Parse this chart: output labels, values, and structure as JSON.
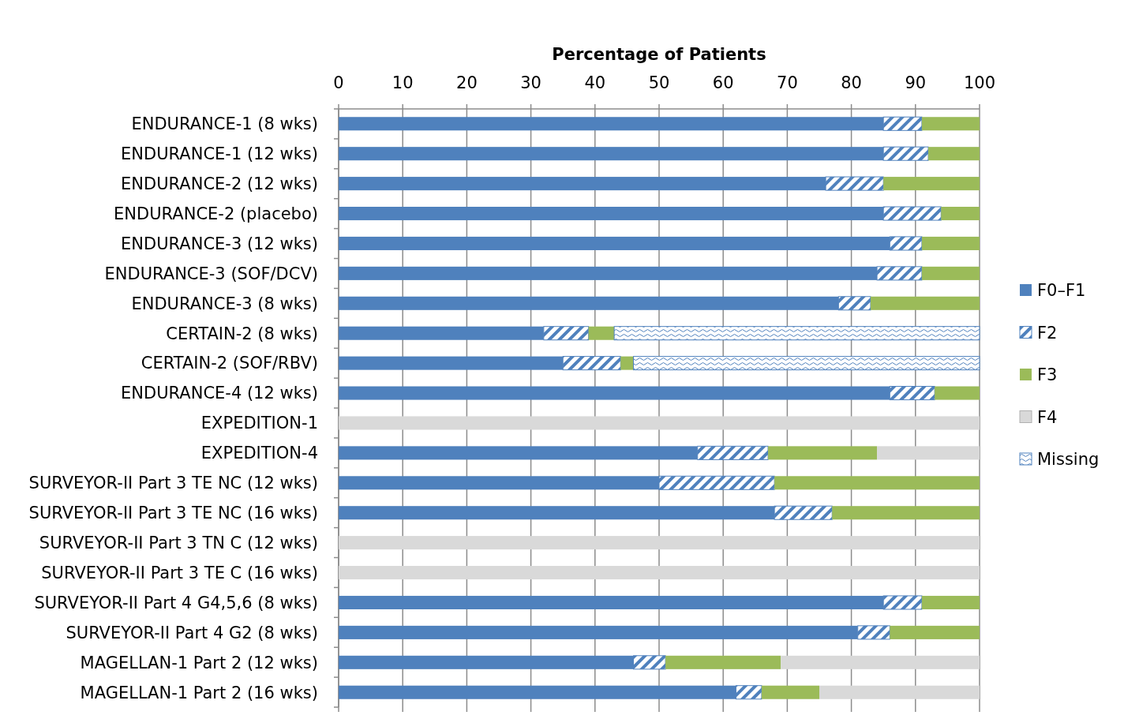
{
  "chart_data": {
    "type": "bar",
    "orientation": "horizontal",
    "stacked": true,
    "xlabel": "Percentage of Patients",
    "categories": [
      "ENDURANCE-1 (8 wks)",
      "ENDURANCE-1 (12 wks)",
      "ENDURANCE-2 (12 wks)",
      "ENDURANCE-2 (placebo)",
      "ENDURANCE-3 (12 wks)",
      "ENDURANCE-3 (SOF/DCV)",
      "ENDURANCE-3 (8 wks)",
      "CERTAIN-2 (8 wks)",
      "CERTAIN-2 (SOF/RBV)",
      "ENDURANCE-4 (12 wks)",
      "EXPEDITION-1",
      "EXPEDITION-4",
      "SURVEYOR-II Part 3 TE NC (12 wks)",
      "SURVEYOR-II Part 3 TE NC (16 wks)",
      "SURVEYOR-II Part 3 TN C (12 wks)",
      "SURVEYOR-II Part 3 TE C (16 wks)",
      "SURVEYOR-II Part 4 G4,5,6 (8 wks)",
      "SURVEYOR-II Part 4 G2 (8 wks)",
      "MAGELLAN-1 Part 2 (12 wks)",
      "MAGELLAN-1 Part 2 (16 wks)"
    ],
    "series": [
      {
        "name": "F0–F1",
        "color": "#4f81bd",
        "values": [
          85,
          85,
          76,
          85,
          86,
          84,
          78,
          32,
          35,
          86,
          0,
          56,
          50,
          68,
          0,
          0,
          85,
          81,
          46,
          62
        ]
      },
      {
        "name": "F2",
        "color": "#4f81bd",
        "values": [
          6,
          7,
          9,
          9,
          5,
          7,
          5,
          7,
          9,
          7,
          0,
          11,
          18,
          9,
          0,
          0,
          6,
          5,
          5,
          4
        ]
      },
      {
        "name": "F3",
        "color": "#9bbb59",
        "values": [
          9,
          8,
          15,
          6,
          9,
          9,
          17,
          4,
          2,
          7,
          0,
          17,
          32,
          23,
          0,
          0,
          9,
          14,
          18,
          9
        ]
      },
      {
        "name": "F4",
        "color": "#d9d9d9",
        "values": [
          0,
          0,
          0,
          0,
          0,
          0,
          0,
          0,
          0,
          0,
          100,
          16,
          0,
          0,
          100,
          100,
          0,
          0,
          31,
          25
        ]
      },
      {
        "name": "Missing",
        "color": "#4f81bd",
        "values": [
          0,
          0,
          0,
          0,
          0,
          0,
          0,
          57,
          54,
          0,
          0,
          0,
          0,
          0,
          0,
          0,
          0,
          0,
          0,
          0
        ]
      }
    ],
    "xlim": [
      0,
      100
    ],
    "xticks": [
      0,
      10,
      20,
      30,
      40,
      50,
      60,
      70,
      80,
      90,
      100
    ],
    "grid": "x",
    "legend": "right"
  }
}
